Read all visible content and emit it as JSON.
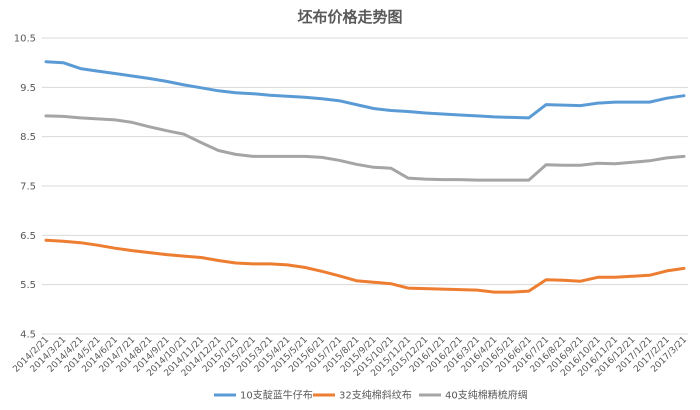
{
  "chart_data": {
    "type": "line",
    "title": "坯布价格走势图",
    "xlabel": "",
    "ylabel": "",
    "ylim": [
      4.5,
      10.5
    ],
    "yticks": [
      4.5,
      5.5,
      6.5,
      7.5,
      8.5,
      9.5,
      10.5
    ],
    "grid": true,
    "legend_position": "bottom",
    "x": [
      "2014/2/21",
      "2014/3/21",
      "2014/4/21",
      "2014/5/21",
      "2014/6/21",
      "2014/7/21",
      "2014/8/21",
      "2014/9/21",
      "2014/10/21",
      "2014/11/21",
      "2014/12/21",
      "2015/1/21",
      "2015/2/21",
      "2015/3/21",
      "2015/4/21",
      "2015/5/21",
      "2015/6/21",
      "2015/7/21",
      "2015/8/21",
      "2015/9/21",
      "2015/10/21",
      "2015/11/21",
      "2015/12/21",
      "2016/1/21",
      "2016/2/21",
      "2016/3/21",
      "2016/4/21",
      "2016/5/21",
      "2016/6/21",
      "2016/7/21",
      "2016/8/21",
      "2016/9/21",
      "2016/10/21",
      "2016/11/21",
      "2016/12/21",
      "2017/1/21",
      "2017/2/21",
      "2017/3/21"
    ],
    "series": [
      {
        "name": "10支靛蓝牛仔布",
        "color": "#5b9bd5",
        "values": [
          10.02,
          10.0,
          9.88,
          9.83,
          9.78,
          9.73,
          9.68,
          9.62,
          9.55,
          9.49,
          9.43,
          9.39,
          9.37,
          9.34,
          9.32,
          9.3,
          9.27,
          9.23,
          9.15,
          9.07,
          9.03,
          9.01,
          8.98,
          8.96,
          8.94,
          8.92,
          8.9,
          8.89,
          8.88,
          9.15,
          9.14,
          9.13,
          9.18,
          9.2,
          9.2,
          9.2,
          9.28,
          9.33
        ]
      },
      {
        "name": "32支纯棉斜纹布",
        "color": "#ed7d31",
        "values": [
          6.4,
          6.38,
          6.35,
          6.3,
          6.24,
          6.19,
          6.15,
          6.11,
          6.08,
          6.05,
          5.99,
          5.94,
          5.92,
          5.92,
          5.9,
          5.85,
          5.77,
          5.68,
          5.58,
          5.55,
          5.52,
          5.43,
          5.42,
          5.41,
          5.4,
          5.39,
          5.35,
          5.35,
          5.37,
          5.6,
          5.59,
          5.57,
          5.65,
          5.65,
          5.67,
          5.69,
          5.78,
          5.83
        ]
      },
      {
        "name": "40支纯棉精梳府绸",
        "color": "#a5a5a5",
        "values": [
          8.92,
          8.91,
          8.88,
          8.86,
          8.84,
          8.79,
          8.7,
          8.62,
          8.55,
          8.38,
          8.22,
          8.14,
          8.1,
          8.1,
          8.1,
          8.1,
          8.08,
          8.02,
          7.94,
          7.88,
          7.86,
          7.66,
          7.64,
          7.63,
          7.63,
          7.62,
          7.62,
          7.62,
          7.62,
          7.93,
          7.92,
          7.92,
          7.96,
          7.95,
          7.98,
          8.01,
          8.07,
          8.1
        ]
      }
    ]
  }
}
